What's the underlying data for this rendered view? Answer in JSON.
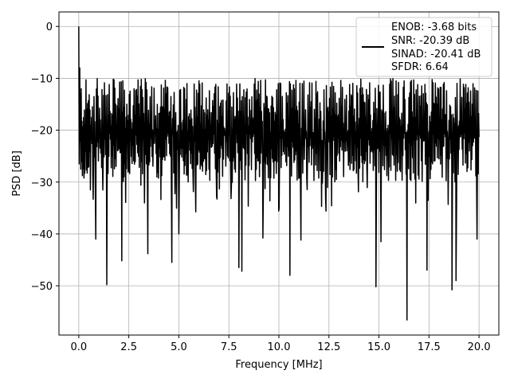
{
  "chart_data": {
    "type": "line",
    "title": "",
    "xlabel": "Frequency [MHz]",
    "ylabel": "PSD [dB]",
    "xlim": [
      -0.99,
      20.99
    ],
    "ylim": [
      -59.5,
      2.8
    ],
    "xticks": [
      0.0,
      2.5,
      5.0,
      7.5,
      10.0,
      12.5,
      15.0,
      17.5,
      20.0
    ],
    "xtick_labels": [
      "0.0",
      "2.5",
      "5.0",
      "7.5",
      "10.0",
      "12.5",
      "15.0",
      "17.5",
      "20.0"
    ],
    "yticks": [
      0,
      -10,
      -20,
      -30,
      -40,
      -50
    ],
    "ytick_labels": [
      "0",
      "−10",
      "−20",
      "−30",
      "−40",
      "−50"
    ],
    "grid": true,
    "legend": {
      "placement": "top-right",
      "entries": [
        "ENOB: -3.68 bits",
        "SNR: -20.39 dB",
        "SINAD: -20.41 dB",
        "SFDR: 6.64"
      ]
    },
    "series": [
      {
        "color": "#000000",
        "x_range": [
          0.0,
          20.0
        ],
        "points": 1000,
        "baseline_db": -20.5,
        "envelope_upper_db": -10.0,
        "envelope_lower_db": -30.0,
        "peaks": [
          {
            "x": 0.0,
            "y": 0.0
          },
          {
            "x": 0.05,
            "y": -8.0
          },
          {
            "x": 0.12,
            "y": -12.0
          }
        ],
        "dips": [
          {
            "x": 0.85,
            "y": -41.0
          },
          {
            "x": 1.4,
            "y": -49.8
          },
          {
            "x": 2.15,
            "y": -45.2
          },
          {
            "x": 3.45,
            "y": -43.8
          },
          {
            "x": 4.65,
            "y": -45.5
          },
          {
            "x": 5.0,
            "y": -40.0
          },
          {
            "x": 8.0,
            "y": -46.5
          },
          {
            "x": 8.15,
            "y": -47.2
          },
          {
            "x": 9.2,
            "y": -40.8
          },
          {
            "x": 10.55,
            "y": -48.0
          },
          {
            "x": 11.1,
            "y": -41.2
          },
          {
            "x": 14.85,
            "y": -50.2
          },
          {
            "x": 15.1,
            "y": -41.5
          },
          {
            "x": 16.4,
            "y": -56.6
          },
          {
            "x": 17.4,
            "y": -47.0
          },
          {
            "x": 18.65,
            "y": -50.8
          },
          {
            "x": 18.85,
            "y": -49.0
          },
          {
            "x": 19.9,
            "y": -41.0
          }
        ]
      }
    ]
  }
}
